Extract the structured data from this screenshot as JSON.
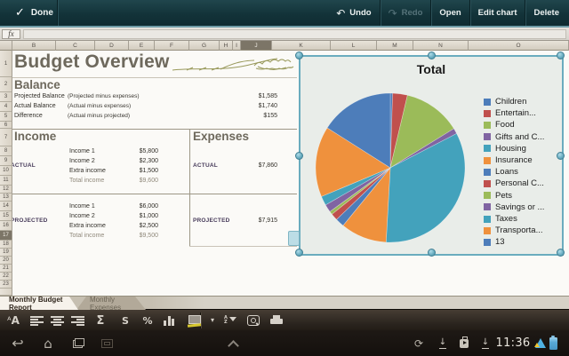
{
  "topbar": {
    "done": "Done",
    "undo": "Undo",
    "redo": "Redo",
    "open": "Open",
    "edit_chart": "Edit chart",
    "delete": "Delete"
  },
  "formula_bar": {
    "fx": "fx",
    "value": ""
  },
  "grid": {
    "columns": [
      "B",
      "C",
      "D",
      "E",
      "F",
      "G",
      "H",
      "I",
      "J",
      "K",
      "L",
      "M",
      "N",
      "O"
    ],
    "selected_column": "J",
    "rows": [
      "1",
      "2",
      "3",
      "4",
      "5",
      "6",
      "7",
      "8",
      "9",
      "10",
      "11",
      "12",
      "13",
      "14",
      "15",
      "16",
      "17",
      "18",
      "19",
      "20",
      "21",
      "22",
      "23"
    ],
    "selected_row": "17"
  },
  "sheet": {
    "title": "Budget Overview",
    "balance": {
      "heading": "Balance",
      "rows": [
        {
          "label": "Projected Balance",
          "desc": "(Projected minus expenses)",
          "value": "$1,585"
        },
        {
          "label": "Actual Balance",
          "desc": "(Actual minus expenses)",
          "value": "$1,740"
        },
        {
          "label": "Difference",
          "desc": "(Actual minus projected)",
          "value": "$155"
        }
      ]
    },
    "income": {
      "heading": "Income",
      "groups": [
        {
          "label": "ACTUAL",
          "rows": [
            [
              "Income 1",
              "$5,800"
            ],
            [
              "Income 2",
              "$2,300"
            ],
            [
              "Extra income",
              "$1,500"
            ],
            [
              "Total income",
              "$9,600"
            ]
          ]
        },
        {
          "label": "PROJECTED",
          "rows": [
            [
              "Income 1",
              "$6,000"
            ],
            [
              "Income 2",
              "$1,000"
            ],
            [
              "Extra income",
              "$2,500"
            ],
            [
              "Total income",
              "$9,500"
            ]
          ]
        }
      ]
    },
    "expenses": {
      "heading": "Expenses",
      "groups": [
        {
          "label": "ACTUAL",
          "value": "$7,860"
        },
        {
          "label": "PROJECTED",
          "value": "$7,915"
        }
      ]
    }
  },
  "chart_data": {
    "type": "pie",
    "title": "Total",
    "legend_position": "right",
    "categories": [
      "Children",
      "Entertain...",
      "Food",
      "Gifts and C...",
      "Housing",
      "Insurance",
      "Loans",
      "Personal C...",
      "Pets",
      "Savings or ...",
      "Taxes",
      "Transporta...",
      "13"
    ],
    "values": [
      0.5,
      3.2,
      12.5,
      1.2,
      33.5,
      10.0,
      1.9,
      1.5,
      0.7,
      1.7,
      2.0,
      15.3,
      16.0
    ],
    "values_unit": "percent_of_pie_estimated",
    "colors": [
      "#4d7dba",
      "#c0504d",
      "#9bbb59",
      "#8064a2",
      "#43a2bc",
      "#ef913d",
      "#4d7dba",
      "#c0504d",
      "#9bbb59",
      "#8064a2",
      "#43a2bc",
      "#ef913d",
      "#4d7dba"
    ]
  },
  "tabs": [
    {
      "label": "Monthly Budget Report",
      "active": true
    },
    {
      "label": "Monthly Expenses",
      "active": false
    }
  ],
  "toolbar": {
    "buttons": [
      {
        "name": "font"
      },
      {
        "name": "align-left"
      },
      {
        "name": "align-center"
      },
      {
        "name": "align-right"
      },
      {
        "name": "sum",
        "glyph": "Σ"
      },
      {
        "name": "currency",
        "glyph": "S"
      },
      {
        "name": "percent",
        "glyph": "%"
      },
      {
        "name": "chart"
      },
      {
        "name": "fill-format"
      },
      {
        "name": "dropdown",
        "glyph": "▾"
      },
      {
        "name": "sort-filter"
      },
      {
        "name": "zoom"
      },
      {
        "name": "print"
      }
    ]
  },
  "navbar": {
    "time": "11:36"
  },
  "colors": {
    "selection_accent": "#6aacbe",
    "topbar_teal": "#16363c",
    "palette": [
      "#4d7dba",
      "#c0504d",
      "#9bbb59",
      "#8064a2",
      "#43a2bc",
      "#ef913d"
    ]
  }
}
